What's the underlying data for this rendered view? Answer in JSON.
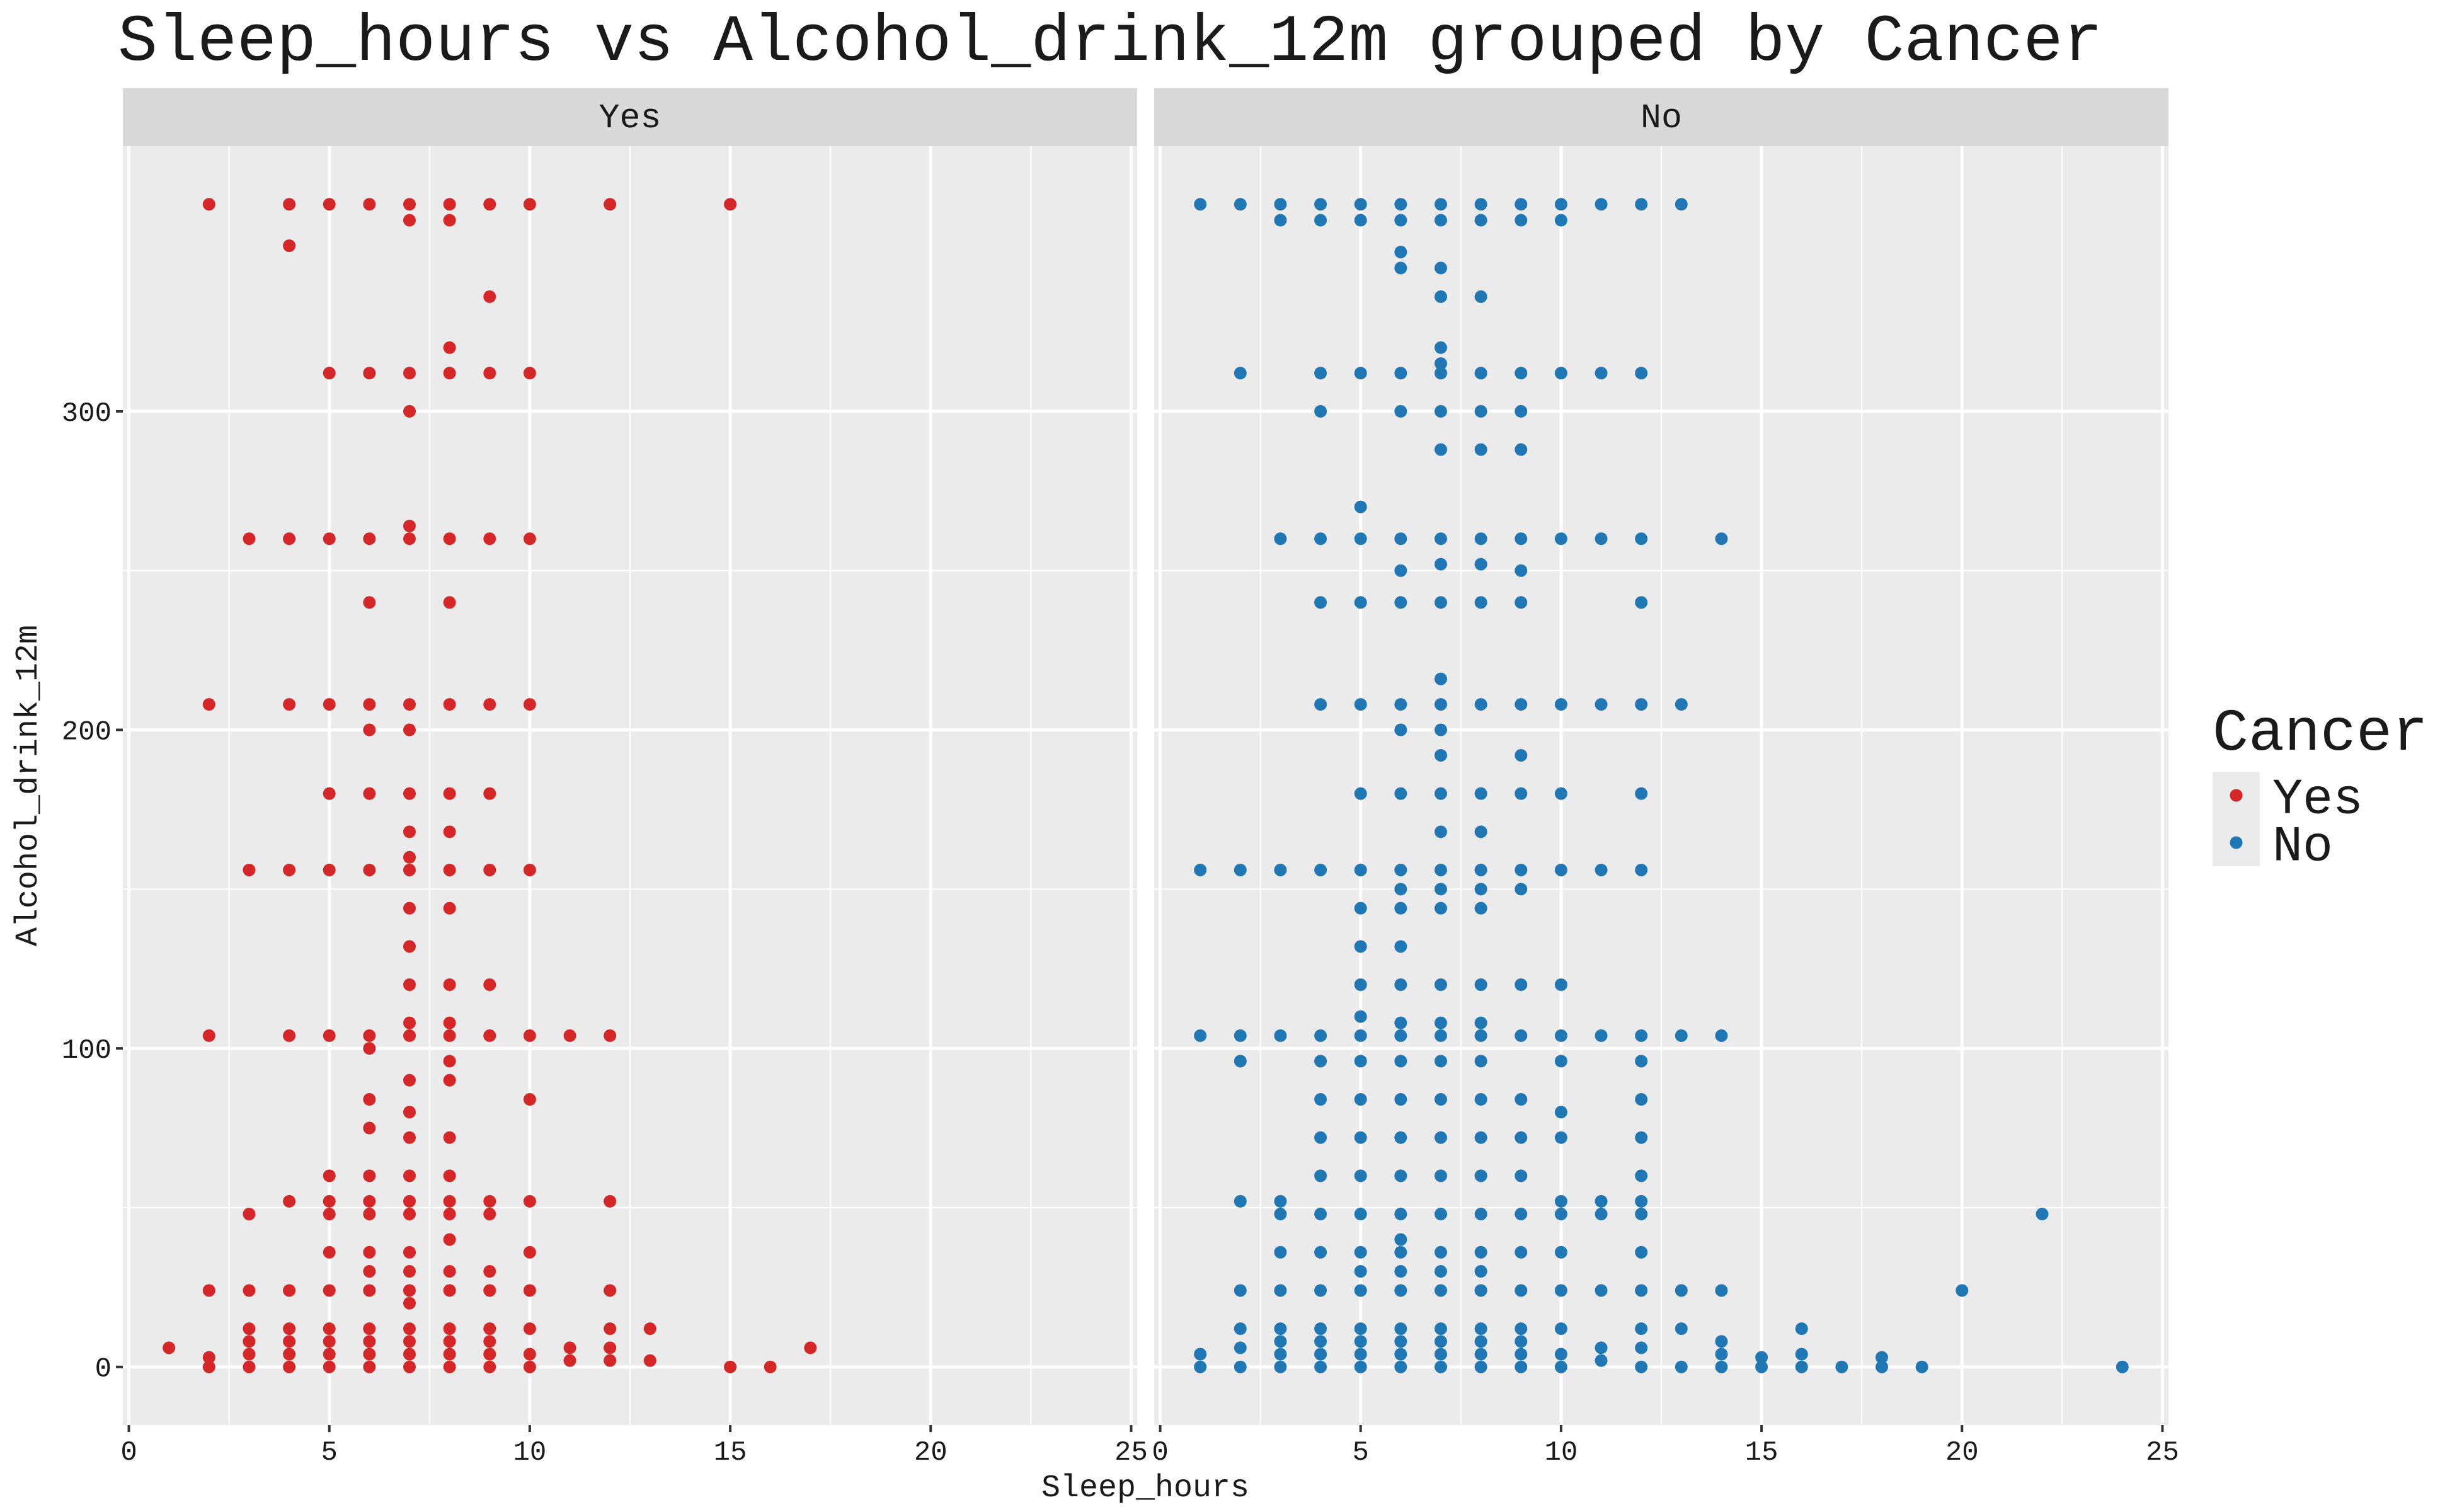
{
  "chart_data": {
    "type": "scatter",
    "title": "Sleep_hours vs Alcohol_drink_12m grouped by Cancer",
    "xlabel": "Sleep_hours",
    "ylabel": "Alcohol_drink_12m",
    "legend_title": "Cancer",
    "legend_position": "right",
    "facet_by_series": true,
    "grid": true,
    "xlim": [
      -0.15,
      25.15
    ],
    "xticks": [
      0,
      5,
      10,
      15,
      20,
      25
    ],
    "ylim": [
      -18.25,
      383.25
    ],
    "yticks": [
      0,
      100,
      200,
      300
    ],
    "series": [
      {
        "name": "Yes",
        "color": "#d62728",
        "x": [
          1,
          2,
          2,
          2,
          2,
          2,
          2,
          3,
          3,
          3,
          3,
          3,
          3,
          3,
          3,
          4,
          4,
          4,
          4,
          4,
          4,
          4,
          4,
          4,
          4,
          4,
          4,
          5,
          5,
          5,
          5,
          5,
          5,
          5,
          5,
          5,
          5,
          5,
          5,
          5,
          5,
          5,
          5,
          6,
          6,
          6,
          6,
          6,
          6,
          6,
          6,
          6,
          6,
          6,
          6,
          6,
          6,
          6,
          6,
          6,
          6,
          6,
          6,
          6,
          6,
          7,
          7,
          7,
          7,
          7,
          7,
          7,
          7,
          7,
          7,
          7,
          7,
          7,
          7,
          7,
          7,
          7,
          7,
          7,
          7,
          7,
          7,
          7,
          7,
          7,
          7,
          7,
          7,
          7,
          7,
          7,
          8,
          8,
          8,
          8,
          8,
          8,
          8,
          8,
          8,
          8,
          8,
          8,
          8,
          8,
          8,
          8,
          8,
          8,
          8,
          8,
          8,
          8,
          8,
          8,
          8,
          8,
          8,
          9,
          9,
          9,
          9,
          9,
          9,
          9,
          9,
          9,
          9,
          9,
          9,
          9,
          9,
          9,
          9,
          9,
          10,
          10,
          10,
          10,
          10,
          10,
          10,
          10,
          10,
          10,
          10,
          10,
          10,
          11,
          11,
          11,
          12,
          12,
          12,
          12,
          12,
          12,
          12,
          13,
          13,
          15,
          15,
          16,
          17
        ],
        "values": [
          6,
          365,
          208,
          104,
          24,
          3,
          0,
          260,
          156,
          48,
          24,
          12,
          8,
          4,
          0,
          365,
          352,
          260,
          208,
          156,
          104,
          52,
          24,
          12,
          8,
          4,
          0,
          365,
          312,
          260,
          208,
          180,
          156,
          104,
          60,
          52,
          48,
          36,
          24,
          12,
          8,
          4,
          0,
          365,
          312,
          260,
          240,
          208,
          200,
          180,
          156,
          104,
          100,
          84,
          75,
          60,
          52,
          48,
          36,
          30,
          24,
          12,
          8,
          4,
          0,
          365,
          360,
          312,
          300,
          264,
          260,
          208,
          200,
          180,
          168,
          160,
          156,
          144,
          132,
          120,
          108,
          104,
          90,
          80,
          72,
          60,
          52,
          48,
          36,
          30,
          24,
          20,
          12,
          8,
          4,
          0,
          365,
          360,
          320,
          312,
          260,
          240,
          208,
          180,
          168,
          156,
          144,
          120,
          108,
          104,
          96,
          90,
          72,
          60,
          52,
          48,
          40,
          30,
          24,
          12,
          8,
          4,
          0,
          365,
          336,
          312,
          260,
          208,
          180,
          156,
          120,
          104,
          52,
          48,
          30,
          24,
          12,
          8,
          4,
          0,
          365,
          312,
          260,
          208,
          156,
          104,
          84,
          52,
          36,
          24,
          12,
          4,
          0,
          104,
          6,
          2,
          365,
          104,
          52,
          24,
          12,
          6,
          2,
          12,
          2,
          365,
          0,
          0,
          6
        ]
      },
      {
        "name": "No",
        "color": "#1f77b4",
        "x": [
          1,
          1,
          1,
          1,
          1,
          2,
          2,
          2,
          2,
          2,
          2,
          2,
          2,
          2,
          2,
          3,
          3,
          3,
          3,
          3,
          3,
          3,
          3,
          3,
          3,
          3,
          3,
          3,
          4,
          4,
          4,
          4,
          4,
          4,
          4,
          4,
          4,
          4,
          4,
          4,
          4,
          4,
          4,
          4,
          4,
          4,
          4,
          4,
          5,
          5,
          5,
          5,
          5,
          5,
          5,
          5,
          5,
          5,
          5,
          5,
          5,
          5,
          5,
          5,
          5,
          5,
          5,
          5,
          5,
          5,
          5,
          5,
          5,
          5,
          6,
          6,
          6,
          6,
          6,
          6,
          6,
          6,
          6,
          6,
          6,
          6,
          6,
          6,
          6,
          6,
          6,
          6,
          6,
          6,
          6,
          6,
          6,
          6,
          6,
          6,
          6,
          6,
          6,
          6,
          6,
          6,
          7,
          7,
          7,
          7,
          7,
          7,
          7,
          7,
          7,
          7,
          7,
          7,
          7,
          7,
          7,
          7,
          7,
          7,
          7,
          7,
          7,
          7,
          7,
          7,
          7,
          7,
          7,
          7,
          7,
          7,
          7,
          7,
          7,
          7,
          7,
          7,
          8,
          8,
          8,
          8,
          8,
          8,
          8,
          8,
          8,
          8,
          8,
          8,
          8,
          8,
          8,
          8,
          8,
          8,
          8,
          8,
          8,
          8,
          8,
          8,
          8,
          8,
          8,
          8,
          8,
          8,
          9,
          9,
          9,
          9,
          9,
          9,
          9,
          9,
          9,
          9,
          9,
          9,
          9,
          9,
          9,
          9,
          9,
          9,
          9,
          9,
          9,
          9,
          9,
          9,
          9,
          10,
          10,
          10,
          10,
          10,
          10,
          10,
          10,
          10,
          10,
          10,
          10,
          10,
          10,
          10,
          10,
          10,
          10,
          10,
          11,
          11,
          11,
          11,
          11,
          11,
          11,
          11,
          11,
          11,
          11,
          12,
          12,
          12,
          12,
          12,
          12,
          12,
          12,
          12,
          12,
          12,
          12,
          12,
          12,
          12,
          12,
          12,
          12,
          12,
          13,
          13,
          13,
          13,
          13,
          13,
          14,
          14,
          14,
          14,
          14,
          14,
          15,
          15,
          16,
          16,
          16,
          17,
          18,
          18,
          19,
          20,
          22,
          24
        ],
        "values": [
          365,
          156,
          104,
          4,
          0,
          365,
          312,
          156,
          104,
          96,
          52,
          24,
          12,
          6,
          0,
          365,
          360,
          260,
          156,
          104,
          52,
          48,
          36,
          24,
          12,
          8,
          4,
          0,
          365,
          360,
          312,
          300,
          260,
          240,
          208,
          156,
          104,
          96,
          84,
          72,
          60,
          48,
          36,
          24,
          12,
          8,
          4,
          0,
          365,
          360,
          312,
          270,
          260,
          240,
          208,
          180,
          156,
          144,
          132,
          120,
          110,
          104,
          96,
          84,
          72,
          60,
          48,
          36,
          30,
          24,
          12,
          8,
          4,
          0,
          365,
          360,
          350,
          345,
          312,
          300,
          260,
          250,
          240,
          208,
          200,
          180,
          156,
          150,
          144,
          132,
          120,
          108,
          104,
          96,
          84,
          72,
          60,
          48,
          40,
          36,
          30,
          24,
          12,
          8,
          4,
          0,
          365,
          360,
          345,
          336,
          320,
          315,
          312,
          300,
          288,
          260,
          252,
          240,
          216,
          208,
          200,
          192,
          180,
          168,
          156,
          150,
          144,
          120,
          108,
          104,
          96,
          84,
          72,
          60,
          48,
          36,
          30,
          24,
          12,
          8,
          4,
          0,
          365,
          360,
          336,
          312,
          300,
          288,
          260,
          252,
          240,
          208,
          180,
          168,
          156,
          150,
          144,
          120,
          108,
          104,
          96,
          84,
          72,
          60,
          48,
          36,
          30,
          24,
          12,
          8,
          4,
          0,
          365,
          360,
          312,
          300,
          288,
          260,
          250,
          240,
          208,
          192,
          180,
          156,
          150,
          120,
          104,
          84,
          72,
          60,
          48,
          36,
          24,
          12,
          8,
          4,
          0,
          365,
          360,
          312,
          260,
          208,
          180,
          156,
          120,
          104,
          96,
          80,
          72,
          52,
          48,
          36,
          24,
          12,
          4,
          0,
          365,
          312,
          260,
          208,
          156,
          104,
          52,
          48,
          24,
          6,
          2,
          365,
          312,
          260,
          240,
          208,
          180,
          156,
          104,
          96,
          84,
          72,
          60,
          52,
          48,
          36,
          24,
          12,
          6,
          0,
          365,
          208,
          104,
          24,
          12,
          0,
          260,
          104,
          24,
          8,
          4,
          0,
          3,
          0,
          12,
          4,
          0,
          0,
          3,
          0,
          0,
          24,
          48,
          0
        ]
      }
    ]
  }
}
